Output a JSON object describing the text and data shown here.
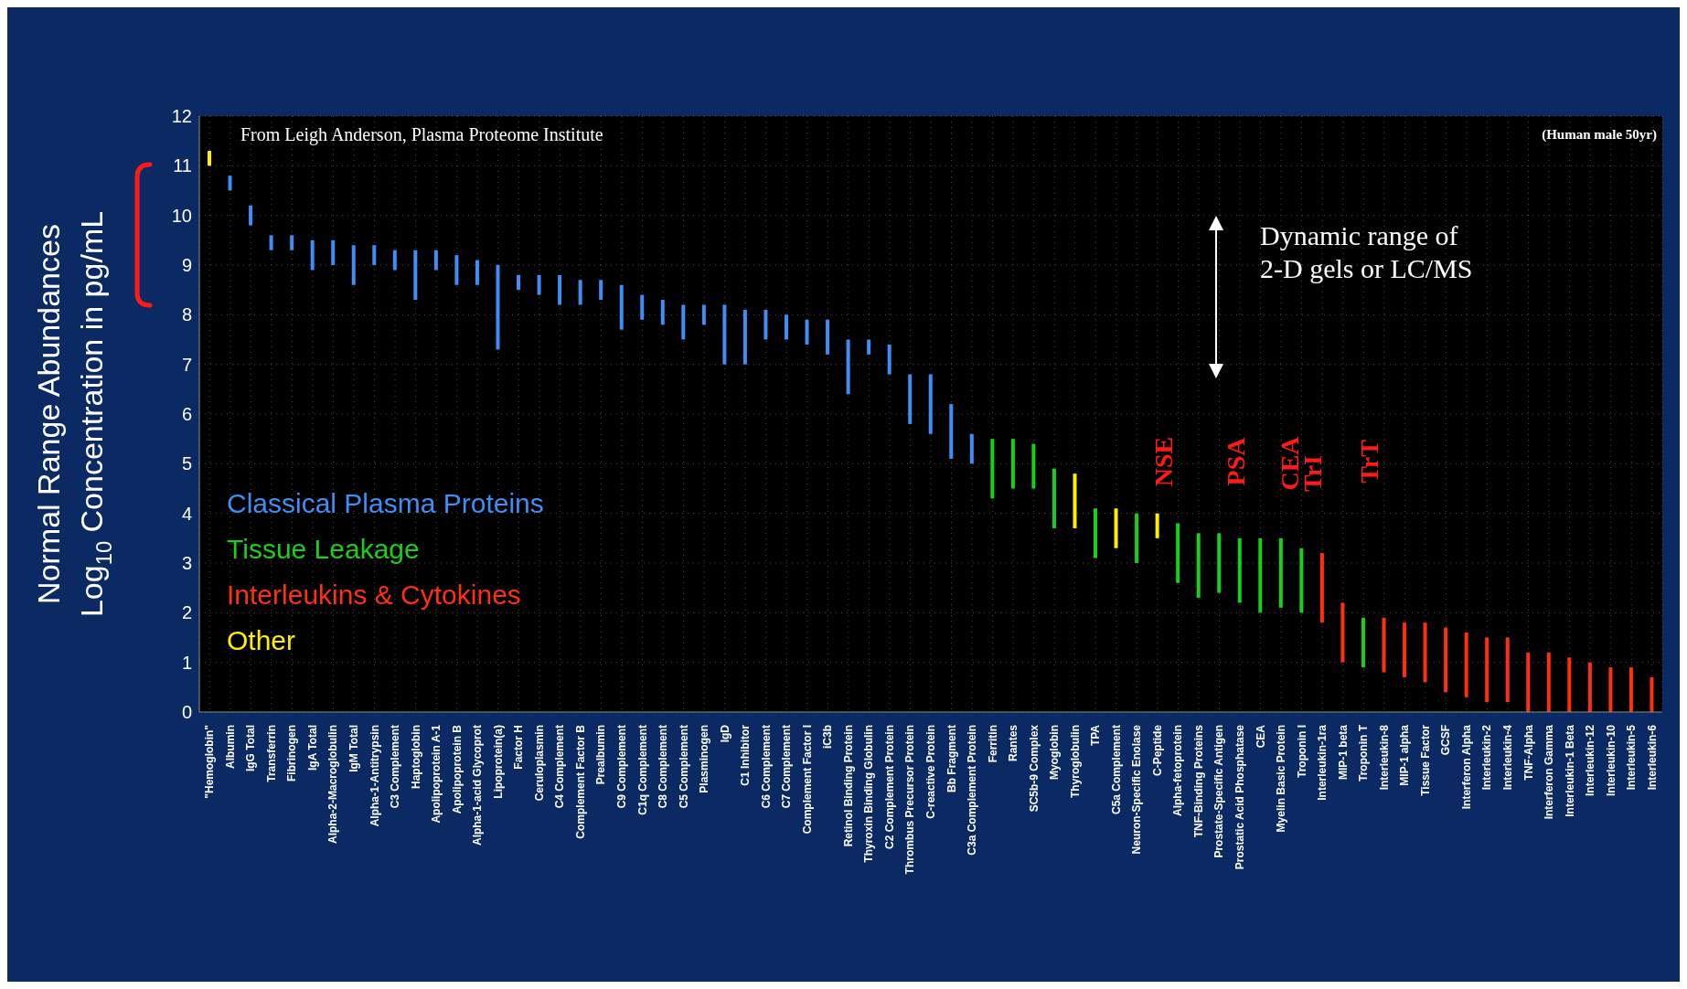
{
  "chart_data": {
    "type": "bar",
    "ylabel": "Normal Range Abundances\nLog$_{10}$ Concentration in pg/mL",
    "categories": [
      "\"Hemoglobin\"",
      "Albumin",
      "IgG Total",
      "Transferrin",
      "Fibrinogen",
      "IgA Total",
      "Alpha-2-Macroglobulin",
      "IgM Total",
      "Alpha-1-Antitrypsin",
      "C3 Complement",
      "Haptoglobin",
      "Apolipoprotein A-1",
      "Apolipoprotein B",
      "Alpha-1-acid Glycoprot",
      "Lipoprotein(a)",
      "Factor H",
      "Ceruloplasmin",
      "C4 Complement",
      "Complement Factor B",
      "Prealbumin",
      "C9 Complement",
      "C1q Complement",
      "C8 Complement",
      "C5 Complement",
      "Plasminogen",
      "IgD",
      "C1 Inhibitor",
      "C6 Complement",
      "C7 Complement",
      "Complement Factor I",
      "iC3b",
      "Retinol Binding Protein",
      "Thyroxin Binding Globulin",
      "C2 Complement Protein",
      "Thrombus Precursor Protein",
      "C-reactive Protein",
      "Bb Fragment",
      "C3a Complement Protein",
      "Ferritin",
      "Rantes",
      "SC5b-9 Complex",
      "Myoglobin",
      "Thyroglobulin",
      "TPA",
      "C5a Complement",
      "Neuron-Specific Enolase",
      "C-Peptide",
      "Alpha-fetoprotein",
      "TNF-Binding Proteins",
      "Prostate-Specific Antigen",
      "Prostatic Acid Phosphatase",
      "CEA",
      "Myelin Basic Protein",
      "Troponin I",
      "Interleukin-1ra",
      "MIP-1 beta",
      "Troponin T",
      "Interleukin-8",
      "MIP-1 alpha",
      "Tissue Factor",
      "GCSF",
      "Interferon Alpha",
      "Interleukin-2",
      "Interleukin-4",
      "TNF-Alpha",
      "Interferon Gamma",
      "Interleukin-1 Beta",
      "Interleukin-12",
      "Interleukin-10",
      "Interleukin-5",
      "Interleukin-6"
    ],
    "series": [
      {
        "name": "Classical Plasma Proteins",
        "color": "#3f8ef5",
        "values": [
          null,
          0.3,
          0.4,
          0.3,
          0.3,
          0.6,
          0.5,
          0.8,
          0.4,
          0.4,
          1.0,
          0.4,
          0.6,
          0.5,
          1.7,
          0.3,
          0.4,
          0.6,
          0.5,
          0.4,
          0.9,
          0.5,
          0.5,
          0.7,
          0.4,
          1.2,
          1.1,
          0.6,
          0.5,
          0.5,
          0.7,
          1.1,
          0.3,
          0.6,
          1.0,
          1.2,
          1.1,
          0.6,
          null,
          null,
          null,
          null,
          null,
          null,
          null,
          null,
          null,
          null,
          null,
          null,
          null,
          null,
          null,
          null,
          null,
          null,
          null,
          null,
          null,
          null,
          null,
          null,
          null,
          null,
          null,
          null,
          null,
          null,
          null,
          null,
          null
        ],
        "base": [
          null,
          10.5,
          9.8,
          9.3,
          9.3,
          8.9,
          9.0,
          8.6,
          9.0,
          8.9,
          8.3,
          8.9,
          8.6,
          8.6,
          7.3,
          8.5,
          8.4,
          8.2,
          8.2,
          8.3,
          7.7,
          7.9,
          7.8,
          7.5,
          7.8,
          7.0,
          7.0,
          7.5,
          7.5,
          7.4,
          7.2,
          6.4,
          7.2,
          6.8,
          5.8,
          5.6,
          5.1,
          5.0,
          null,
          null,
          null,
          null,
          null,
          null,
          null,
          null,
          null,
          null,
          null,
          null,
          null,
          null,
          null,
          null,
          null,
          null,
          null,
          null,
          null,
          null,
          null,
          null,
          null,
          null,
          null,
          null,
          null,
          null,
          null,
          null,
          null
        ]
      },
      {
        "name": "Tissue Leakage",
        "color": "#19d019",
        "values": [
          null,
          null,
          null,
          null,
          null,
          null,
          null,
          null,
          null,
          null,
          null,
          null,
          null,
          null,
          null,
          null,
          null,
          null,
          null,
          null,
          null,
          null,
          null,
          null,
          null,
          null,
          null,
          null,
          null,
          null,
          null,
          null,
          null,
          null,
          null,
          null,
          null,
          null,
          1.2,
          1.0,
          0.9,
          1.2,
          null,
          1.0,
          null,
          1.0,
          null,
          1.2,
          1.3,
          1.2,
          1.3,
          1.5,
          1.4,
          1.3,
          null,
          null,
          1.0,
          null,
          null,
          null,
          null,
          null,
          null,
          null,
          null,
          null,
          null,
          null,
          null,
          null,
          null
        ],
        "base": [
          null,
          null,
          null,
          null,
          null,
          null,
          null,
          null,
          null,
          null,
          null,
          null,
          null,
          null,
          null,
          null,
          null,
          null,
          null,
          null,
          null,
          null,
          null,
          null,
          null,
          null,
          null,
          null,
          null,
          null,
          null,
          null,
          null,
          null,
          null,
          null,
          null,
          null,
          4.3,
          4.5,
          4.5,
          3.7,
          null,
          3.1,
          null,
          3.0,
          null,
          2.6,
          2.3,
          2.4,
          2.2,
          2.0,
          2.1,
          2.0,
          null,
          null,
          0.9,
          null,
          null,
          null,
          null,
          null,
          null,
          null,
          null,
          null,
          null,
          null,
          null,
          null,
          null
        ]
      },
      {
        "name": "Interleukins & Cytokines",
        "color": "#ff3010",
        "values": [
          null,
          null,
          null,
          null,
          null,
          null,
          null,
          null,
          null,
          null,
          null,
          null,
          null,
          null,
          null,
          null,
          null,
          null,
          null,
          null,
          null,
          null,
          null,
          null,
          null,
          null,
          null,
          null,
          null,
          null,
          null,
          null,
          null,
          null,
          null,
          null,
          null,
          null,
          null,
          null,
          null,
          null,
          null,
          null,
          null,
          null,
          null,
          null,
          null,
          null,
          null,
          null,
          null,
          null,
          1.4,
          1.2,
          null,
          1.1,
          1.1,
          1.2,
          1.3,
          1.3,
          1.3,
          1.3,
          1.2,
          1.2,
          1.1,
          1.0,
          0.9,
          0.9,
          0.7
        ],
        "base": [
          null,
          null,
          null,
          null,
          null,
          null,
          null,
          null,
          null,
          null,
          null,
          null,
          null,
          null,
          null,
          null,
          null,
          null,
          null,
          null,
          null,
          null,
          null,
          null,
          null,
          null,
          null,
          null,
          null,
          null,
          null,
          null,
          null,
          null,
          null,
          null,
          null,
          null,
          null,
          null,
          null,
          null,
          null,
          null,
          null,
          null,
          null,
          null,
          null,
          null,
          null,
          null,
          null,
          null,
          1.8,
          1.0,
          null,
          0.8,
          0.7,
          0.6,
          0.4,
          0.3,
          0.2,
          0.2,
          0,
          0,
          0,
          0,
          0,
          0,
          0
        ]
      },
      {
        "name": "Other",
        "color": "#ffee00",
        "values": [
          0.3,
          null,
          null,
          null,
          null,
          null,
          null,
          null,
          null,
          null,
          null,
          null,
          null,
          null,
          null,
          null,
          null,
          null,
          null,
          null,
          null,
          null,
          null,
          null,
          null,
          null,
          null,
          null,
          null,
          null,
          null,
          null,
          null,
          null,
          null,
          null,
          null,
          null,
          null,
          null,
          null,
          null,
          1.1,
          null,
          0.8,
          null,
          0.5,
          null,
          null,
          null,
          null,
          null,
          null,
          null,
          null,
          null,
          null,
          null,
          null,
          null,
          null,
          null,
          null,
          null,
          null,
          null,
          null,
          null,
          null,
          null,
          null
        ],
        "base": [
          11.0,
          null,
          null,
          null,
          null,
          null,
          null,
          null,
          null,
          null,
          null,
          null,
          null,
          null,
          null,
          null,
          null,
          null,
          null,
          null,
          null,
          null,
          null,
          null,
          null,
          null,
          null,
          null,
          null,
          null,
          null,
          null,
          null,
          null,
          null,
          null,
          null,
          null,
          null,
          null,
          null,
          null,
          3.7,
          null,
          3.3,
          null,
          3.5,
          null,
          null,
          null,
          null,
          null,
          null,
          null,
          null,
          null,
          null,
          null,
          null,
          null,
          null,
          null,
          null,
          null,
          null,
          null,
          null,
          null,
          null,
          null,
          null
        ]
      }
    ],
    "ylim": [
      0,
      12
    ],
    "yticks": [
      0,
      1,
      2,
      3,
      4,
      5,
      6,
      7,
      8,
      9,
      10,
      11,
      12
    ],
    "grid": true,
    "legend": "left",
    "annotations": [
      "From Leigh Anderson, Plasma Proteome Institute",
      "(Human male 50yr)",
      "Dynamic range of\n2-D gels or LC/MS",
      "NSE",
      "PSA",
      "CEA",
      "TrI",
      "TrT"
    ]
  }
}
